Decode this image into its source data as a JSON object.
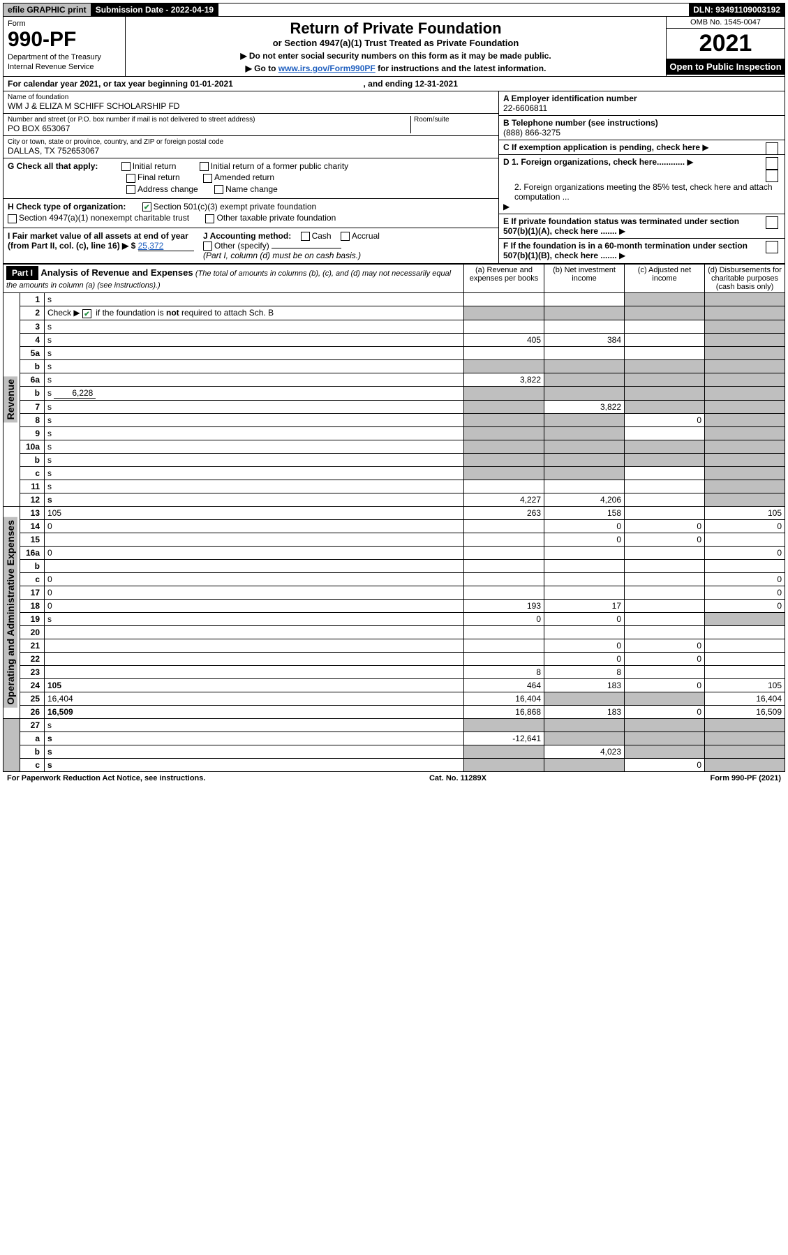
{
  "colors": {
    "shade": "#bfbfbf",
    "black": "#000000",
    "link": "#1f5fbf",
    "check": "#1f8f3f"
  },
  "top": {
    "efile": "efile GRAPHIC print",
    "submission_label": "Submission Date - 2022-04-19",
    "dln": "DLN: 93491109003192"
  },
  "header": {
    "form": "Form",
    "number": "990-PF",
    "dept1": "Department of the Treasury",
    "dept2": "Internal Revenue Service",
    "title": "Return of Private Foundation",
    "subtitle": "or Section 4947(a)(1) Trust Treated as Private Foundation",
    "note1": "▶ Do not enter social security numbers on this form as it may be made public.",
    "note2_pre": "▶ Go to ",
    "note2_link": "www.irs.gov/Form990PF",
    "note2_post": " for instructions and the latest information.",
    "omb": "OMB No. 1545-0047",
    "year": "2021",
    "open": "Open to Public Inspection"
  },
  "cal": "For calendar year 2021, or tax year beginning 01-01-2021",
  "cal_end": ", and ending 12-31-2021",
  "info": {
    "name_label": "Name of foundation",
    "name": "WM J & ELIZA M SCHIFF SCHOLARSHIP FD",
    "addr_label": "Number and street (or P.O. box number if mail is not delivered to street address)",
    "addr": "PO BOX 653067",
    "room_label": "Room/suite",
    "city_label": "City or town, state or province, country, and ZIP or foreign postal code",
    "city": "DALLAS, TX  752653067",
    "ein_label": "A Employer identification number",
    "ein": "22-6606811",
    "phone_label": "B Telephone number (see instructions)",
    "phone": "(888) 866-3275",
    "c": "C If exemption application is pending, check here",
    "d1": "D 1. Foreign organizations, check here............",
    "d2": "2. Foreign organizations meeting the 85% test, check here and attach computation ...",
    "e": "E  If private foundation status was terminated under section 507(b)(1)(A), check here .......",
    "f": "F  If the foundation is in a 60-month termination under section 507(b)(1)(B), check here .......",
    "g": "G Check all that apply:",
    "g_opts": [
      "Initial return",
      "Initial return of a former public charity",
      "Final return",
      "Amended return",
      "Address change",
      "Name change"
    ],
    "h": "H Check type of organization:",
    "h1": "Section 501(c)(3) exempt private foundation",
    "h2": "Section 4947(a)(1) nonexempt charitable trust",
    "h3": "Other taxable private foundation",
    "i": "I Fair market value of all assets at end of year (from Part II, col. (c), line 16) ▶ $",
    "i_val": "25,372",
    "j": "J Accounting method:",
    "j_opts": [
      "Cash",
      "Accrual",
      "Other (specify)"
    ],
    "j_note": "(Part I, column (d) must be on cash basis.)"
  },
  "part1": {
    "label": "Part I",
    "title": "Analysis of Revenue and Expenses",
    "desc": "(The total of amounts in columns (b), (c), and (d) may not necessarily equal the amounts in column (a) (see instructions).)",
    "cols": {
      "a": "(a)   Revenue and expenses per books",
      "b": "(b)   Net investment income",
      "c": "(c)   Adjusted net income",
      "d": "(d)  Disbursements for charitable purposes (cash basis only)"
    },
    "vert_rev": "Revenue",
    "vert_exp": "Operating and Administrative Expenses"
  },
  "rows": [
    {
      "n": "1",
      "d": "s",
      "a": "",
      "b": "",
      "c": "s"
    },
    {
      "n": "2",
      "d": "s",
      "a": "s",
      "b": "s",
      "c": "s",
      "checkmark": true
    },
    {
      "n": "3",
      "d": "s",
      "a": "",
      "b": "",
      "c": ""
    },
    {
      "n": "4",
      "d": "s",
      "a": "405",
      "b": "384",
      "c": ""
    },
    {
      "n": "5a",
      "d": "s",
      "a": "",
      "b": "",
      "c": ""
    },
    {
      "n": "b",
      "d": "s",
      "a": "s",
      "b": "s",
      "c": "s",
      "sub": true
    },
    {
      "n": "6a",
      "d": "s",
      "a": "3,822",
      "b": "s",
      "c": "s"
    },
    {
      "n": "b",
      "d": "s",
      "a": "s",
      "b": "s",
      "c": "s",
      "inline": "6,228"
    },
    {
      "n": "7",
      "d": "s",
      "a": "s",
      "b": "3,822",
      "c": "s"
    },
    {
      "n": "8",
      "d": "s",
      "a": "s",
      "b": "s",
      "c": "0"
    },
    {
      "n": "9",
      "d": "s",
      "a": "s",
      "b": "s",
      "c": ""
    },
    {
      "n": "10a",
      "d": "s",
      "a": "s",
      "b": "s",
      "c": "s"
    },
    {
      "n": "b",
      "d": "s",
      "a": "s",
      "b": "s",
      "c": "s"
    },
    {
      "n": "c",
      "d": "s",
      "a": "s",
      "b": "s",
      "c": ""
    },
    {
      "n": "11",
      "d": "s",
      "a": "",
      "b": "",
      "c": ""
    },
    {
      "n": "12",
      "d": "s",
      "a": "4,227",
      "b": "4,206",
      "c": "",
      "bold": true
    }
  ],
  "exp_rows": [
    {
      "n": "13",
      "d": "105",
      "a": "263",
      "b": "158",
      "c": ""
    },
    {
      "n": "14",
      "d": "0",
      "a": "",
      "b": "0",
      "c": "0"
    },
    {
      "n": "15",
      "d": "",
      "a": "",
      "b": "0",
      "c": "0"
    },
    {
      "n": "16a",
      "d": "0",
      "a": "",
      "b": "",
      "c": ""
    },
    {
      "n": "b",
      "d": "",
      "a": "",
      "b": "",
      "c": ""
    },
    {
      "n": "c",
      "d": "0",
      "a": "",
      "b": "",
      "c": ""
    },
    {
      "n": "17",
      "d": "0",
      "a": "",
      "b": "",
      "c": ""
    },
    {
      "n": "18",
      "d": "0",
      "a": "193",
      "b": "17",
      "c": ""
    },
    {
      "n": "19",
      "d": "s",
      "a": "0",
      "b": "0",
      "c": ""
    },
    {
      "n": "20",
      "d": "",
      "a": "",
      "b": "",
      "c": ""
    },
    {
      "n": "21",
      "d": "",
      "a": "",
      "b": "0",
      "c": "0"
    },
    {
      "n": "22",
      "d": "",
      "a": "",
      "b": "0",
      "c": "0"
    },
    {
      "n": "23",
      "d": "",
      "a": "8",
      "b": "8",
      "c": ""
    },
    {
      "n": "24",
      "d": "105",
      "a": "464",
      "b": "183",
      "c": "0",
      "bold": true
    },
    {
      "n": "25",
      "d": "16,404",
      "a": "16,404",
      "b": "s",
      "c": "s"
    },
    {
      "n": "26",
      "d": "16,509",
      "a": "16,868",
      "b": "183",
      "c": "0",
      "bold": true
    }
  ],
  "bottom_rows": [
    {
      "n": "27",
      "d": "s",
      "a": "s",
      "b": "s",
      "c": "s"
    },
    {
      "n": "a",
      "d": "s",
      "a": "-12,641",
      "b": "s",
      "c": "s",
      "bold": true
    },
    {
      "n": "b",
      "d": "s",
      "a": "s",
      "b": "4,023",
      "c": "s",
      "bold": true
    },
    {
      "n": "c",
      "d": "s",
      "a": "s",
      "b": "s",
      "c": "0",
      "bold": true
    }
  ],
  "footer": {
    "left": "For Paperwork Reduction Act Notice, see instructions.",
    "center": "Cat. No. 11289X",
    "right": "Form 990-PF (2021)"
  }
}
